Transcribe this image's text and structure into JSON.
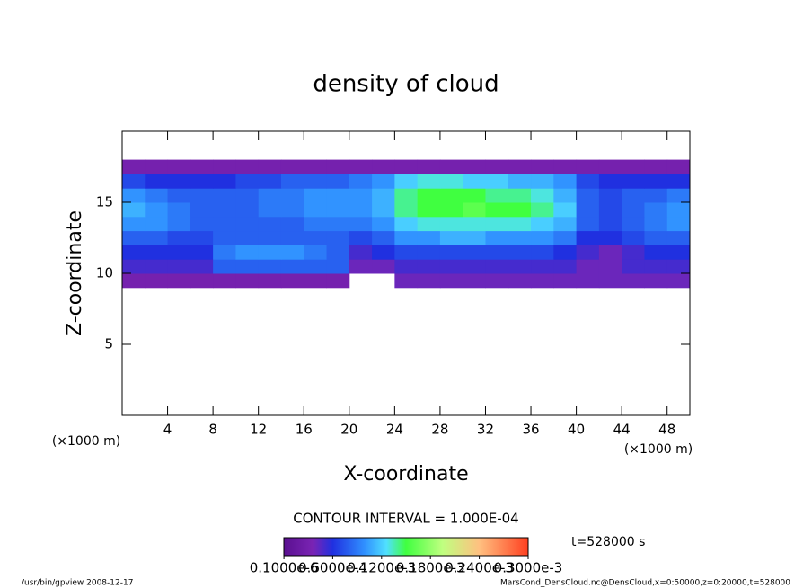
{
  "chart_data": {
    "type": "heatmap",
    "title": "density of cloud",
    "xlabel": "X-coordinate",
    "ylabel": "Z-coordinate",
    "x_unit": "(×1000 m)",
    "y_unit": "(×1000 m)",
    "xlim": [
      0,
      50
    ],
    "ylim": [
      0,
      20
    ],
    "xticks": [
      4,
      8,
      12,
      16,
      20,
      24,
      28,
      32,
      36,
      40,
      44,
      48
    ],
    "yticks": [
      5,
      10,
      15
    ],
    "x": [
      1,
      3,
      5,
      7,
      9,
      11,
      13,
      15,
      17,
      19,
      21,
      23,
      25,
      27,
      29,
      31,
      33,
      35,
      37,
      39,
      41,
      43,
      45,
      47,
      49
    ],
    "z": [
      9.5,
      10.5,
      11.5,
      12.5,
      13.5,
      14.5,
      15.5,
      16.5,
      17.5
    ],
    "values": [
      [
        3e-05,
        3e-05,
        3e-05,
        3e-05,
        3e-05,
        3e-05,
        3e-05,
        3e-05,
        3e-05,
        3e-05,
        null,
        null,
        4e-05,
        4e-05,
        4e-05,
        4e-05,
        4e-05,
        4e-05,
        4e-05,
        4e-05,
        4e-05,
        4e-05,
        4e-05,
        4e-05,
        4e-05
      ],
      [
        5e-05,
        5e-05,
        5e-05,
        5e-05,
        8e-05,
        8e-05,
        8e-05,
        8e-05,
        8e-05,
        8e-05,
        4e-05,
        4e-05,
        5e-05,
        5e-05,
        5e-05,
        5e-05,
        5e-05,
        5e-05,
        5e-05,
        5e-05,
        4e-05,
        4e-05,
        5e-05,
        5e-05,
        5e-05
      ],
      [
        6e-05,
        6e-05,
        6e-05,
        6e-05,
        9e-05,
        0.0001,
        0.0001,
        0.0001,
        9e-05,
        8e-05,
        5e-05,
        6e-05,
        7e-05,
        7e-05,
        7e-05,
        7e-05,
        7e-05,
        7e-05,
        7e-05,
        6e-05,
        5e-05,
        4e-05,
        5e-05,
        6e-05,
        6e-05
      ],
      [
        8e-05,
        8e-05,
        7e-05,
        7e-05,
        8e-05,
        8e-05,
        8e-05,
        8e-05,
        8e-05,
        8e-05,
        7e-05,
        8e-05,
        0.0001,
        0.0001,
        0.00011,
        0.00011,
        0.0001,
        0.0001,
        0.0001,
        9e-05,
        6e-05,
        6e-05,
        7e-05,
        8e-05,
        8e-05
      ],
      [
        0.0001,
        0.0001,
        9e-05,
        8e-05,
        8e-05,
        8e-05,
        8e-05,
        8e-05,
        9e-05,
        9e-05,
        9e-05,
        0.0001,
        0.00012,
        0.00013,
        0.00013,
        0.00013,
        0.00013,
        0.00013,
        0.00012,
        0.00011,
        8e-05,
        7e-05,
        8e-05,
        9e-05,
        0.0001
      ],
      [
        0.00011,
        0.0001,
        9e-05,
        8e-05,
        8e-05,
        8e-05,
        9e-05,
        9e-05,
        0.0001,
        0.0001,
        0.0001,
        0.00011,
        0.00014,
        0.00015,
        0.00015,
        0.00016,
        0.00015,
        0.00015,
        0.00014,
        0.00012,
        8e-05,
        7e-05,
        8e-05,
        9e-05,
        0.0001
      ],
      [
        0.0001,
        9e-05,
        8e-05,
        8e-05,
        8e-05,
        8e-05,
        9e-05,
        9e-05,
        0.0001,
        0.0001,
        0.0001,
        0.00011,
        0.00014,
        0.00015,
        0.00015,
        0.00015,
        0.00014,
        0.00014,
        0.00013,
        0.00011,
        8e-05,
        7e-05,
        8e-05,
        8e-05,
        9e-05
      ],
      [
        7e-05,
        6e-05,
        6e-05,
        6e-05,
        6e-05,
        7e-05,
        7e-05,
        8e-05,
        8e-05,
        8e-05,
        9e-05,
        0.0001,
        0.00012,
        0.00013,
        0.00013,
        0.00012,
        0.00012,
        0.00011,
        0.00011,
        0.0001,
        7e-05,
        6e-05,
        6e-05,
        6e-05,
        6e-05
      ],
      [
        3e-05,
        3e-05,
        3e-05,
        3e-05,
        3e-05,
        3e-05,
        3e-05,
        3e-05,
        3e-05,
        3e-05,
        3e-05,
        3e-05,
        3e-05,
        3e-05,
        3e-05,
        3e-05,
        3e-05,
        3e-05,
        3e-05,
        3e-05,
        3e-05,
        3e-05,
        3e-05,
        3e-05,
        3e-05
      ]
    ],
    "zlim": [
      0,
      0.0003
    ],
    "colorbar_ticks": [
      {
        "value": 1e-07,
        "label": "0.1000e-6"
      },
      {
        "value": 6e-05,
        "label": "0.6000e-4"
      },
      {
        "value": 0.00012,
        "label": "0.1200e-3"
      },
      {
        "value": 0.00018,
        "label": "0.1800e-3"
      },
      {
        "value": 0.00024,
        "label": "0.2400e-3"
      },
      {
        "value": 0.0003,
        "label": "0.3000e-3"
      }
    ],
    "contour_interval": "CONTOUR INTERVAL = 1.000E-04",
    "time_label": "t=528000 s",
    "footer_left": "/usr/bin/gpview  2008-12-17",
    "footer_right": "MarsCond_DensCloud.nc@DensCloud,x=0:50000,z=0:20000,t=528000"
  }
}
